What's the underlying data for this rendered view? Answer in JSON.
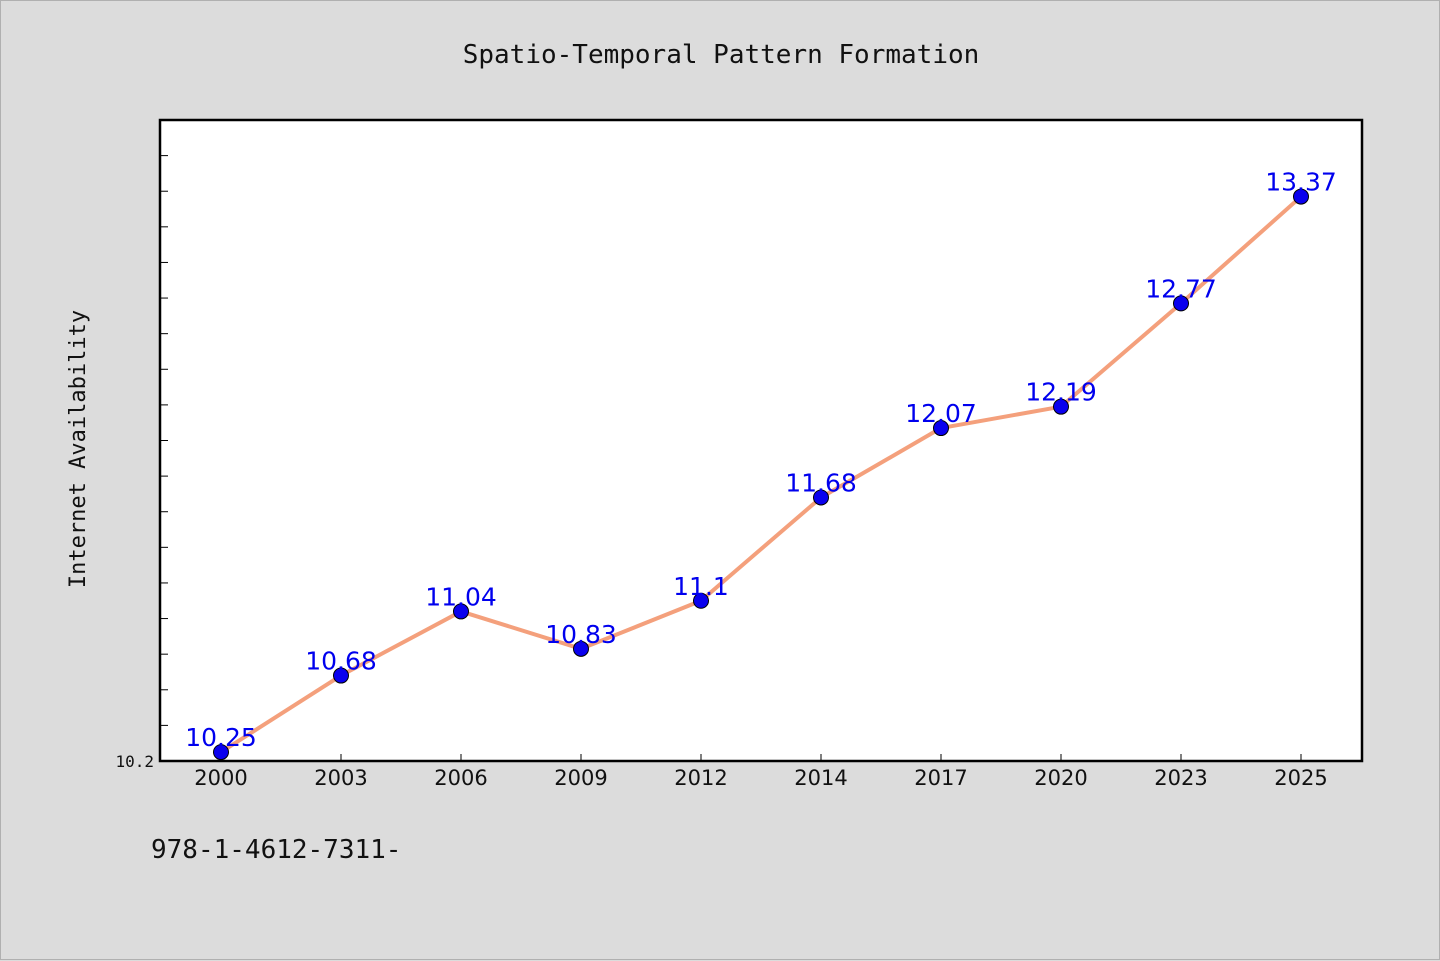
{
  "footer": {
    "text": "978-1-4612-7311-"
  },
  "chart_data": {
    "type": "line",
    "title": "Spatio-Temporal Pattern Formation",
    "xlabel": "",
    "ylabel": "Internet Availability",
    "categories": [
      "2000",
      "2003",
      "2006",
      "2009",
      "2012",
      "2014",
      "2017",
      "2020",
      "2023",
      "2025"
    ],
    "series": [
      {
        "values": [
          10.25,
          10.68,
          11.04,
          10.83,
          11.1,
          11.68,
          12.07,
          12.19,
          12.77,
          13.37
        ],
        "labels": [
          "10.25",
          "10.68",
          "11.04",
          "10.83",
          "11.1",
          "11.68",
          "12.07",
          "12.19",
          "12.77",
          "13.37"
        ],
        "line_color": "#f4a07c",
        "marker_color": "#0a00ee",
        "label_color": "#0000ee"
      }
    ],
    "ylim": [
      10.2,
      13.8
    ],
    "y_tick_labels": [
      "10.2"
    ],
    "grid": false,
    "legend": "none"
  }
}
